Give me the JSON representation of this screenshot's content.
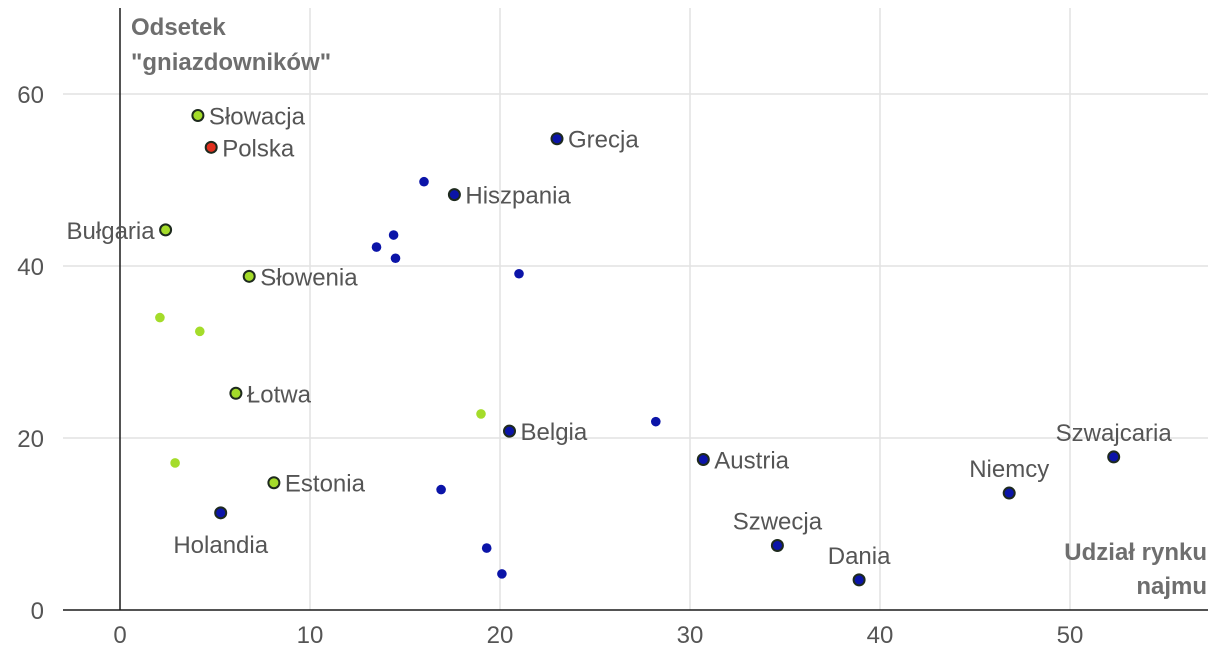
{
  "chart_data": {
    "type": "scatter",
    "title_lines": [
      "Odsetek",
      "\"gniazdowników\""
    ],
    "xlabel_lines": [
      "Udział rynku",
      "najmu"
    ],
    "xlim": [
      -3,
      57
    ],
    "ylim": [
      0,
      70
    ],
    "x_ticks": [
      0,
      10,
      20,
      30,
      40,
      50
    ],
    "y_ticks": [
      0,
      20,
      40,
      60
    ],
    "x_tick_labels": [
      "0",
      "10",
      "20",
      "30",
      "40",
      "50"
    ],
    "y_tick_labels": [
      "0",
      "20",
      "40",
      "60"
    ],
    "grid": true,
    "colors": {
      "blue": "#0b14a8",
      "green": "#a4dc2a",
      "red": "#e0301e",
      "outline": "#1e2a1e",
      "grid": "#e2e2e2",
      "text": "#555555",
      "title": "#6e6e6e",
      "axis": "#1a1a1a"
    },
    "points": [
      {
        "label": "Słowacja",
        "x": 4.1,
        "y": 57.5,
        "group": "green",
        "outlined": true,
        "label_pos": "right"
      },
      {
        "label": "Polska",
        "x": 4.8,
        "y": 53.8,
        "group": "red",
        "outlined": true,
        "label_pos": "right"
      },
      {
        "label": "Grecja",
        "x": 23.0,
        "y": 54.8,
        "group": "blue",
        "outlined": true,
        "label_pos": "right"
      },
      {
        "label": "Hiszpania",
        "x": 17.6,
        "y": 48.3,
        "group": "blue",
        "outlined": true,
        "label_pos": "right"
      },
      {
        "label": "Bułgaria",
        "x": 2.4,
        "y": 44.2,
        "group": "green",
        "outlined": true,
        "label_pos": "left"
      },
      {
        "label": "Słowenia",
        "x": 6.8,
        "y": 38.8,
        "group": "green",
        "outlined": true,
        "label_pos": "right"
      },
      {
        "label": "Łotwa",
        "x": 6.1,
        "y": 25.2,
        "group": "green",
        "outlined": true,
        "label_pos": "right"
      },
      {
        "label": "Belgia",
        "x": 20.5,
        "y": 20.8,
        "group": "blue",
        "outlined": true,
        "label_pos": "right"
      },
      {
        "label": "Austria",
        "x": 30.7,
        "y": 17.5,
        "group": "blue",
        "outlined": true,
        "label_pos": "right"
      },
      {
        "label": "Estonia",
        "x": 8.1,
        "y": 14.8,
        "group": "green",
        "outlined": true,
        "label_pos": "right"
      },
      {
        "label": "Holandia",
        "x": 5.3,
        "y": 11.3,
        "group": "blue",
        "outlined": true,
        "label_pos": "below"
      },
      {
        "label": "Szwecja",
        "x": 34.6,
        "y": 7.5,
        "group": "blue",
        "outlined": true,
        "label_pos": "above"
      },
      {
        "label": "Dania",
        "x": 38.9,
        "y": 3.5,
        "group": "blue",
        "outlined": true,
        "label_pos": "above"
      },
      {
        "label": "Niemcy",
        "x": 46.8,
        "y": 13.6,
        "group": "blue",
        "outlined": true,
        "label_pos": "above"
      },
      {
        "label": "Szwajcaria",
        "x": 52.3,
        "y": 17.8,
        "group": "blue",
        "outlined": true,
        "label_pos": "above"
      },
      {
        "label": "",
        "x": 16.0,
        "y": 49.8,
        "group": "blue",
        "outlined": false
      },
      {
        "label": "",
        "x": 14.4,
        "y": 43.6,
        "group": "blue",
        "outlined": false
      },
      {
        "label": "",
        "x": 13.5,
        "y": 42.2,
        "group": "blue",
        "outlined": false
      },
      {
        "label": "",
        "x": 14.5,
        "y": 40.9,
        "group": "blue",
        "outlined": false
      },
      {
        "label": "",
        "x": 21.0,
        "y": 39.1,
        "group": "blue",
        "outlined": false
      },
      {
        "label": "",
        "x": 28.2,
        "y": 21.9,
        "group": "blue",
        "outlined": false
      },
      {
        "label": "",
        "x": 16.9,
        "y": 14.0,
        "group": "blue",
        "outlined": false
      },
      {
        "label": "",
        "x": 19.3,
        "y": 7.2,
        "group": "blue",
        "outlined": false
      },
      {
        "label": "",
        "x": 20.1,
        "y": 4.2,
        "group": "blue",
        "outlined": false
      },
      {
        "label": "",
        "x": 2.1,
        "y": 34.0,
        "group": "green",
        "outlined": false
      },
      {
        "label": "",
        "x": 4.2,
        "y": 32.4,
        "group": "green",
        "outlined": false
      },
      {
        "label": "",
        "x": 19.0,
        "y": 22.8,
        "group": "green",
        "outlined": false
      },
      {
        "label": "",
        "x": 2.9,
        "y": 17.1,
        "group": "green",
        "outlined": false
      }
    ]
  }
}
